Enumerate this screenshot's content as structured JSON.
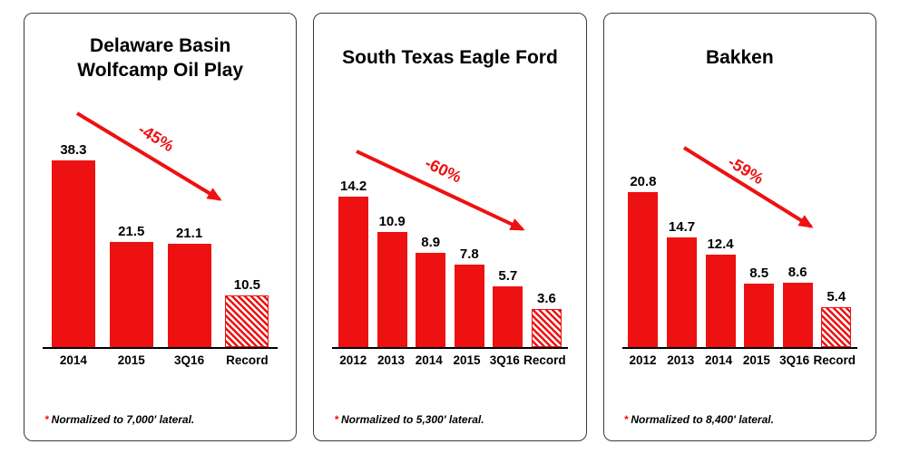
{
  "page": {
    "background": "#ffffff"
  },
  "colors": {
    "accent_red": "#ee1111",
    "axis": "#000000",
    "panel_border": "#3a3a3a",
    "text": "#000000"
  },
  "chart_data": [
    {
      "type": "bar",
      "title": "Delaware Basin Wolfcamp Oil Play",
      "title_lines": [
        "Delaware Basin",
        "Wolfcamp Oil Play"
      ],
      "categories": [
        "2014",
        "2015",
        "3Q16",
        "Record"
      ],
      "values": [
        38.3,
        21.5,
        21.1,
        10.5
      ],
      "record_bar_index": 3,
      "annotation": "-45%",
      "footnote_star": "*",
      "footnote": "Normalized to 7,000' lateral.",
      "xlabel": "",
      "ylabel": "",
      "ylim": [
        0,
        52
      ],
      "grid": false,
      "legend": false
    },
    {
      "type": "bar",
      "title": "South Texas Eagle Ford",
      "title_lines": [
        "South Texas Eagle Ford"
      ],
      "categories": [
        "2012",
        "2013",
        "2014",
        "2015",
        "3Q16",
        "Record"
      ],
      "values": [
        14.2,
        10.9,
        8.9,
        7.8,
        5.7,
        3.6
      ],
      "record_bar_index": 5,
      "annotation": "-60%",
      "footnote_star": "*",
      "footnote": "Normalized to 5,300' lateral.",
      "xlabel": "",
      "ylabel": "",
      "ylim": [
        0,
        24
      ],
      "grid": false,
      "legend": false
    },
    {
      "type": "bar",
      "title": "Bakken",
      "title_lines": [
        "Bakken"
      ],
      "categories": [
        "2012",
        "2013",
        "2014",
        "2015",
        "3Q16",
        "Record"
      ],
      "values": [
        20.8,
        14.7,
        12.4,
        8.5,
        8.6,
        5.4
      ],
      "record_bar_index": 5,
      "annotation": "-59%",
      "footnote_star": "*",
      "footnote": "Normalized to 8,400' lateral.",
      "xlabel": "",
      "ylabel": "",
      "ylim": [
        0,
        34
      ],
      "grid": false,
      "legend": false
    }
  ]
}
